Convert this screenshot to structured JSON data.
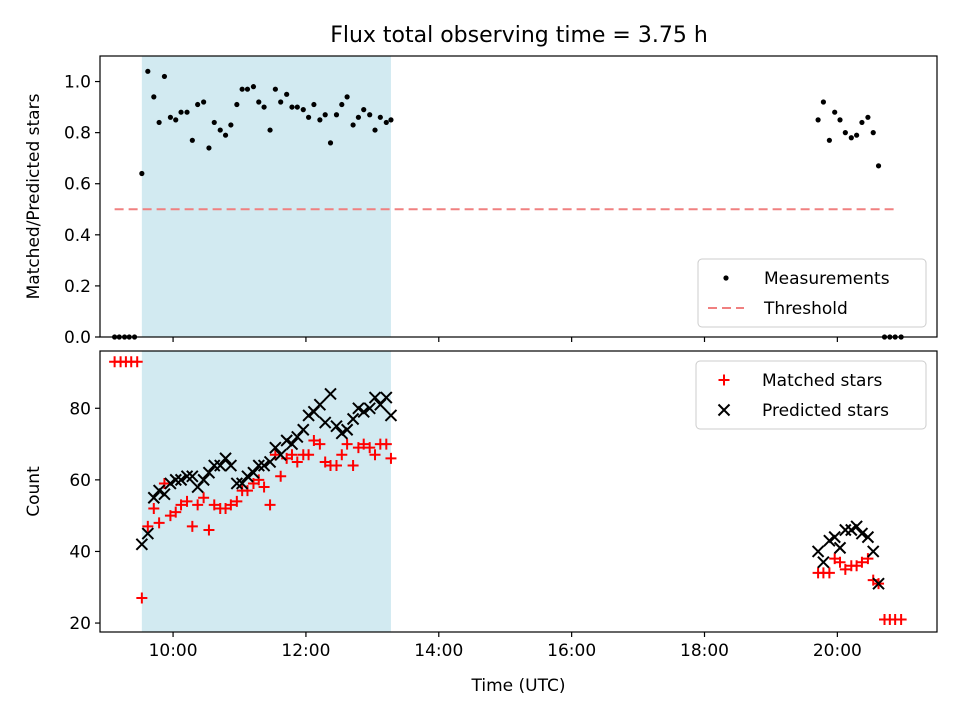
{
  "figure": {
    "title": "Flux total observing time = 3.75 h"
  },
  "colors": {
    "shade": "#add8e6",
    "measurement": "#000000",
    "threshold": "#f08080",
    "matched": "#ff0000",
    "predicted": "#000000"
  },
  "chart_data": [
    {
      "type": "scatter",
      "ylabel": "Matched/Predicted stars",
      "xlim": [
        8.9,
        21.5
      ],
      "ylim": [
        0,
        1.1
      ],
      "yticks": [
        0.0,
        0.2,
        0.4,
        0.6,
        0.8,
        1.0
      ],
      "ytick_labels": [
        "0.0",
        "0.2",
        "0.4",
        "0.6",
        "0.8",
        "1.0"
      ],
      "shaded_span": [
        9.53,
        13.28
      ],
      "threshold": {
        "y": 0.5,
        "x": [
          9.12,
          20.9
        ]
      },
      "legend": {
        "location": "lower right",
        "entries": [
          "Measurements",
          "Threshold"
        ]
      },
      "series": [
        {
          "name": "Measurements",
          "marker": "dot",
          "points": [
            [
              9.12,
              0.0
            ],
            [
              9.19,
              0.0
            ],
            [
              9.27,
              0.0
            ],
            [
              9.34,
              0.0
            ],
            [
              9.42,
              0.0
            ],
            [
              9.53,
              0.64
            ],
            [
              9.62,
              1.04
            ],
            [
              9.71,
              0.94
            ],
            [
              9.79,
              0.84
            ],
            [
              9.87,
              1.02
            ],
            [
              9.96,
              0.86
            ],
            [
              10.04,
              0.85
            ],
            [
              10.12,
              0.88
            ],
            [
              10.21,
              0.88
            ],
            [
              10.29,
              0.77
            ],
            [
              10.37,
              0.91
            ],
            [
              10.46,
              0.92
            ],
            [
              10.54,
              0.74
            ],
            [
              10.62,
              0.84
            ],
            [
              10.71,
              0.81
            ],
            [
              10.79,
              0.79
            ],
            [
              10.87,
              0.83
            ],
            [
              10.96,
              0.91
            ],
            [
              11.04,
              0.97
            ],
            [
              11.12,
              0.97
            ],
            [
              11.21,
              0.98
            ],
            [
              11.29,
              0.92
            ],
            [
              11.37,
              0.9
            ],
            [
              11.46,
              0.81
            ],
            [
              11.54,
              0.97
            ],
            [
              11.62,
              0.92
            ],
            [
              11.71,
              0.95
            ],
            [
              11.79,
              0.9
            ],
            [
              11.87,
              0.9
            ],
            [
              11.96,
              0.89
            ],
            [
              12.04,
              0.86
            ],
            [
              12.12,
              0.91
            ],
            [
              12.21,
              0.85
            ],
            [
              12.29,
              0.87
            ],
            [
              12.37,
              0.76
            ],
            [
              12.46,
              0.87
            ],
            [
              12.54,
              0.91
            ],
            [
              12.62,
              0.94
            ],
            [
              12.71,
              0.83
            ],
            [
              12.79,
              0.86
            ],
            [
              12.87,
              0.89
            ],
            [
              12.96,
              0.87
            ],
            [
              13.04,
              0.81
            ],
            [
              13.12,
              0.86
            ],
            [
              13.21,
              0.84
            ],
            [
              13.28,
              0.85
            ],
            [
              19.71,
              0.85
            ],
            [
              19.79,
              0.92
            ],
            [
              19.88,
              0.77
            ],
            [
              19.96,
              0.88
            ],
            [
              20.04,
              0.85
            ],
            [
              20.12,
              0.8
            ],
            [
              20.21,
              0.78
            ],
            [
              20.29,
              0.79
            ],
            [
              20.37,
              0.84
            ],
            [
              20.46,
              0.86
            ],
            [
              20.54,
              0.8
            ],
            [
              20.62,
              0.67
            ],
            [
              20.71,
              0.0
            ],
            [
              20.79,
              0.0
            ],
            [
              20.87,
              0.0
            ],
            [
              20.96,
              0.0
            ]
          ]
        },
        {
          "name": "Threshold",
          "marker": "dashed-line"
        }
      ]
    },
    {
      "type": "scatter",
      "xlabel": "Time (UTC)",
      "ylabel": "Count",
      "xlim": [
        8.9,
        21.5
      ],
      "ylim": [
        17.5,
        96
      ],
      "xticks": [
        10,
        12,
        14,
        16,
        18,
        20
      ],
      "xtick_labels": [
        "10:00",
        "12:00",
        "14:00",
        "16:00",
        "18:00",
        "20:00"
      ],
      "yticks": [
        20,
        40,
        60,
        80
      ],
      "ytick_labels": [
        "20",
        "40",
        "60",
        "80"
      ],
      "shaded_span": [
        9.53,
        13.28
      ],
      "legend": {
        "location": "upper right",
        "entries": [
          "Matched stars",
          "Predicted stars"
        ]
      },
      "series": [
        {
          "name": "Matched stars",
          "marker": "plus",
          "points": [
            [
              9.12,
              93
            ],
            [
              9.21,
              93
            ],
            [
              9.29,
              93
            ],
            [
              9.37,
              93
            ],
            [
              9.46,
              93
            ],
            [
              9.53,
              27
            ],
            [
              9.62,
              47
            ],
            [
              9.71,
              52
            ],
            [
              9.79,
              48
            ],
            [
              9.87,
              59
            ],
            [
              9.96,
              50
            ],
            [
              10.04,
              51
            ],
            [
              10.12,
              53
            ],
            [
              10.21,
              54
            ],
            [
              10.29,
              47
            ],
            [
              10.37,
              53
            ],
            [
              10.46,
              55
            ],
            [
              10.54,
              46
            ],
            [
              10.62,
              53
            ],
            [
              10.71,
              52
            ],
            [
              10.79,
              52
            ],
            [
              10.87,
              53
            ],
            [
              10.96,
              54
            ],
            [
              11.04,
              57
            ],
            [
              11.12,
              57
            ],
            [
              11.21,
              59
            ],
            [
              11.29,
              60
            ],
            [
              11.37,
              58
            ],
            [
              11.46,
              53
            ],
            [
              11.54,
              67
            ],
            [
              11.62,
              61
            ],
            [
              11.71,
              66
            ],
            [
              11.79,
              67
            ],
            [
              11.87,
              65
            ],
            [
              11.96,
              67
            ],
            [
              12.04,
              67
            ],
            [
              12.12,
              71
            ],
            [
              12.21,
              70
            ],
            [
              12.29,
              65
            ],
            [
              12.37,
              64
            ],
            [
              12.46,
              64
            ],
            [
              12.54,
              67
            ],
            [
              12.62,
              70
            ],
            [
              12.71,
              64
            ],
            [
              12.79,
              69
            ],
            [
              12.87,
              70
            ],
            [
              12.96,
              69
            ],
            [
              13.04,
              67
            ],
            [
              13.12,
              70
            ],
            [
              13.21,
              70
            ],
            [
              13.28,
              66
            ],
            [
              19.71,
              34
            ],
            [
              19.79,
              34
            ],
            [
              19.88,
              34
            ],
            [
              19.96,
              38
            ],
            [
              20.04,
              37
            ],
            [
              20.12,
              35
            ],
            [
              20.21,
              36
            ],
            [
              20.29,
              36
            ],
            [
              20.37,
              37
            ],
            [
              20.46,
              38
            ],
            [
              20.54,
              32
            ],
            [
              20.62,
              31
            ],
            [
              20.71,
              21
            ],
            [
              20.79,
              21
            ],
            [
              20.87,
              21
            ],
            [
              20.96,
              21
            ]
          ]
        },
        {
          "name": "Predicted stars",
          "marker": "x",
          "points": [
            [
              9.53,
              42
            ],
            [
              9.62,
              45
            ],
            [
              9.71,
              55
            ],
            [
              9.79,
              57
            ],
            [
              9.87,
              56
            ],
            [
              9.96,
              59
            ],
            [
              10.04,
              60
            ],
            [
              10.12,
              60
            ],
            [
              10.21,
              61
            ],
            [
              10.29,
              61
            ],
            [
              10.37,
              58
            ],
            [
              10.46,
              60
            ],
            [
              10.54,
              62
            ],
            [
              10.62,
              64
            ],
            [
              10.71,
              64
            ],
            [
              10.79,
              66
            ],
            [
              10.87,
              64
            ],
            [
              10.96,
              59
            ],
            [
              11.04,
              59
            ],
            [
              11.12,
              61
            ],
            [
              11.21,
              62
            ],
            [
              11.29,
              64
            ],
            [
              11.37,
              64
            ],
            [
              11.46,
              65
            ],
            [
              11.54,
              69
            ],
            [
              11.62,
              67
            ],
            [
              11.71,
              71
            ],
            [
              11.79,
              70
            ],
            [
              11.87,
              72
            ],
            [
              11.96,
              74
            ],
            [
              12.04,
              78
            ],
            [
              12.12,
              79
            ],
            [
              12.21,
              81
            ],
            [
              12.29,
              76
            ],
            [
              12.37,
              84
            ],
            [
              12.46,
              75
            ],
            [
              12.54,
              73
            ],
            [
              12.62,
              74
            ],
            [
              12.71,
              77
            ],
            [
              12.79,
              80
            ],
            [
              12.87,
              79
            ],
            [
              12.96,
              80
            ],
            [
              13.04,
              83
            ],
            [
              13.12,
              81
            ],
            [
              13.21,
              83
            ],
            [
              13.28,
              78
            ],
            [
              19.71,
              40
            ],
            [
              19.79,
              37
            ],
            [
              19.88,
              43
            ],
            [
              19.96,
              44
            ],
            [
              20.04,
              41
            ],
            [
              20.12,
              46
            ],
            [
              20.21,
              46
            ],
            [
              20.29,
              47
            ],
            [
              20.37,
              45
            ],
            [
              20.46,
              44
            ],
            [
              20.54,
              40
            ],
            [
              20.62,
              31
            ]
          ]
        }
      ]
    }
  ]
}
